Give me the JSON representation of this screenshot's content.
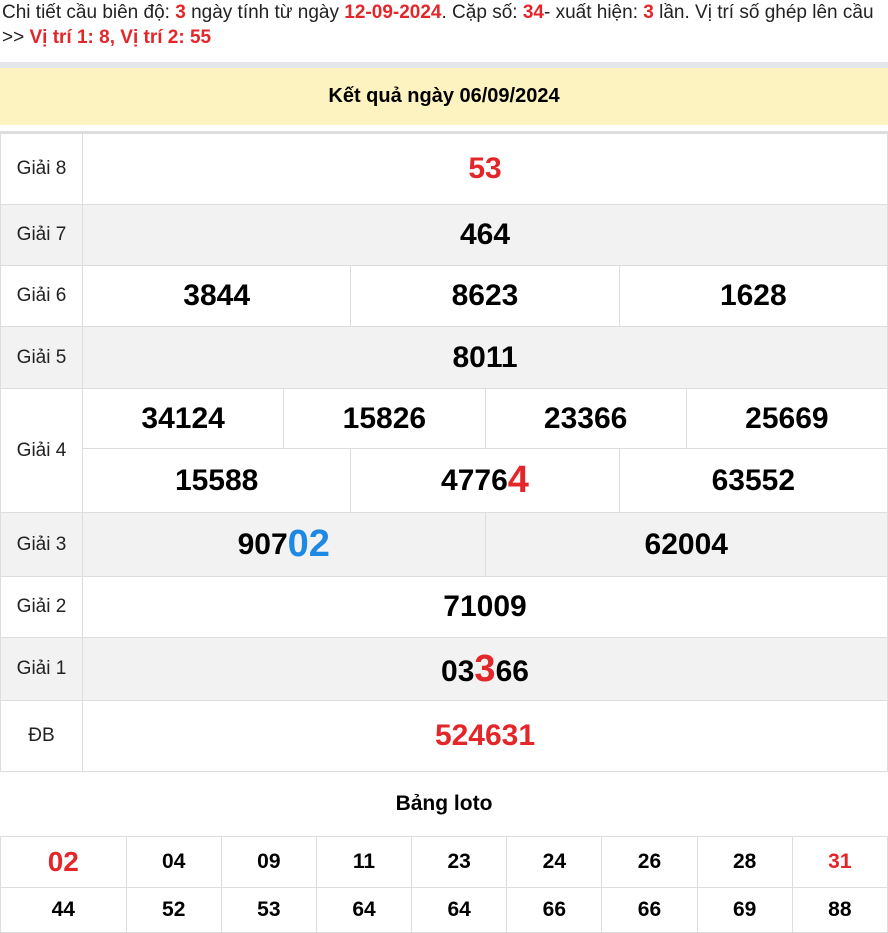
{
  "intro": {
    "p1": "Chi tiết cầu biên độ: ",
    "days": "3",
    "p2": " ngày tính từ ngày ",
    "date": "12-09-2024",
    "p3": ". Cặp số: ",
    "pair": "34",
    "p4": "- xuất hiện: ",
    "times": "3",
    "p5": " lần. Vị trí số ghép lên cầu >> ",
    "pos": "Vị trí 1: 8, Vị trí 2: 55"
  },
  "header": {
    "title": "Kết quả ngày 06/09/2024"
  },
  "prizes": {
    "g8": {
      "label": "Giải 8",
      "value": "53"
    },
    "g7": {
      "label": "Giải 7",
      "value": "464"
    },
    "g6": {
      "label": "Giải 6",
      "values": [
        "3844",
        "8623",
        "1628"
      ]
    },
    "g5": {
      "label": "Giải 5",
      "value": "8011"
    },
    "g4": {
      "label": "Giải 4",
      "row1": [
        "34124",
        "15826",
        "23366",
        "25669"
      ],
      "row2a": "15588",
      "row2b_pre": "4776",
      "row2b_hl": "4",
      "row2c": "63552"
    },
    "g3": {
      "label": "Giải 3",
      "a_pre": "907",
      "a_hl": "02",
      "b": "62004"
    },
    "g2": {
      "label": "Giải 2",
      "value": "71009"
    },
    "g1": {
      "label": "Giải 1",
      "pre": "03",
      "hl": "3",
      "post": "66"
    },
    "db": {
      "label": "ĐB",
      "value": "524631"
    }
  },
  "loto": {
    "title": "Bảng loto",
    "row1": [
      "02",
      "04",
      "09",
      "11",
      "23",
      "24",
      "26",
      "28",
      "31"
    ],
    "row2": [
      "44",
      "52",
      "53",
      "64",
      "64",
      "66",
      "66",
      "69",
      "88"
    ]
  },
  "colors": {
    "highlight_red": "#e3262a",
    "highlight_blue": "#1e88e5",
    "header_bg": "#fdf3c0"
  }
}
